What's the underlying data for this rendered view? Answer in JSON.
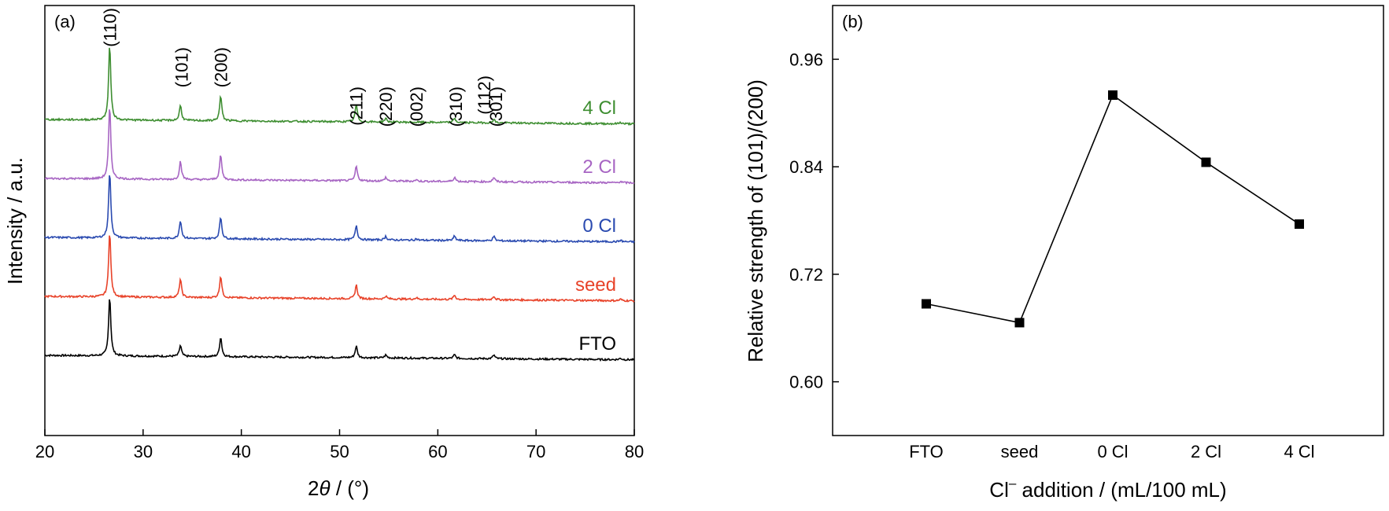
{
  "chart_data": [
    {
      "panel_label": "(a)",
      "type": "line",
      "xlabel_prefix": "2",
      "xlabel_symbol": "θ",
      "xlabel_unit": " / (°)",
      "ylabel": "Intensity / a.u.",
      "xlim": [
        20,
        80
      ],
      "xticks": [
        20,
        30,
        40,
        50,
        60,
        70,
        80
      ],
      "peak_labels": [
        {
          "text": "(110)",
          "x": 26.6
        },
        {
          "text": "(101)",
          "x": 33.9
        },
        {
          "text": "(200)",
          "x": 37.9
        },
        {
          "text": "(211)",
          "x": 51.7
        },
        {
          "text": "(220)",
          "x": 54.7
        },
        {
          "text": "(002)",
          "x": 57.8
        },
        {
          "text": "(310)",
          "x": 61.8
        },
        {
          "text": "(112)",
          "x": 64.7
        },
        {
          "text": "(301)",
          "x": 65.9
        }
      ],
      "series": [
        {
          "name": "FTO",
          "color": "#000000",
          "offset": 0.0,
          "peaks": [
            [
              26.6,
              0.82
            ],
            [
              33.8,
              0.15
            ],
            [
              37.9,
              0.27
            ],
            [
              51.7,
              0.16
            ],
            [
              54.7,
              0.04
            ],
            [
              61.7,
              0.05
            ],
            [
              65.7,
              0.05
            ],
            [
              78.6,
              0.02
            ]
          ]
        },
        {
          "name": "seed",
          "color": "#e8432a",
          "offset": 1.0,
          "peaks": [
            [
              26.6,
              0.9
            ],
            [
              33.8,
              0.25
            ],
            [
              37.9,
              0.3
            ],
            [
              51.7,
              0.19
            ],
            [
              54.7,
              0.04
            ],
            [
              57.8,
              0.02
            ],
            [
              61.7,
              0.06
            ],
            [
              65.7,
              0.05
            ],
            [
              78.6,
              0.02
            ]
          ]
        },
        {
          "name": "0 Cl",
          "color": "#2a4ab0",
          "offset": 2.0,
          "peaks": [
            [
              26.6,
              0.91
            ],
            [
              33.8,
              0.25
            ],
            [
              37.9,
              0.3
            ],
            [
              51.7,
              0.2
            ],
            [
              54.7,
              0.05
            ],
            [
              57.8,
              0.02
            ],
            [
              61.7,
              0.06
            ],
            [
              65.7,
              0.06
            ],
            [
              78.6,
              0.02
            ]
          ]
        },
        {
          "name": "2 Cl",
          "color": "#a765c3",
          "offset": 3.0,
          "peaks": [
            [
              26.6,
              1.0
            ],
            [
              33.8,
              0.25
            ],
            [
              37.9,
              0.34
            ],
            [
              51.7,
              0.2
            ],
            [
              54.7,
              0.05
            ],
            [
              57.8,
              0.02
            ],
            [
              61.7,
              0.06
            ],
            [
              65.7,
              0.06
            ],
            [
              78.6,
              0.02
            ]
          ]
        },
        {
          "name": "4 Cl",
          "color": "#3e8e31",
          "offset": 4.0,
          "peaks": [
            [
              26.6,
              1.03
            ],
            [
              33.8,
              0.21
            ],
            [
              37.9,
              0.34
            ],
            [
              51.7,
              0.24
            ],
            [
              54.7,
              0.05
            ],
            [
              61.7,
              0.06
            ],
            [
              65.7,
              0.05
            ],
            [
              78.6,
              0.02
            ]
          ]
        }
      ],
      "grid": false
    },
    {
      "panel_label": "(b)",
      "type": "line",
      "marker": "square",
      "xlabel_prefix": "Cl",
      "xlabel_sup": "–",
      "xlabel_suffix": " addition / (mL/100 mL)",
      "ylabel": "Relative strength of (101)/(200)",
      "categories": [
        "FTO",
        "seed",
        "0 Cl",
        "2 Cl",
        "4 Cl"
      ],
      "values": [
        0.687,
        0.666,
        0.92,
        0.845,
        0.776
      ],
      "ylim": [
        0.54,
        1.02
      ],
      "yticks": [
        "0.60",
        "0.72",
        "0.84",
        "0.96"
      ],
      "color": "#000000",
      "grid": false
    }
  ]
}
